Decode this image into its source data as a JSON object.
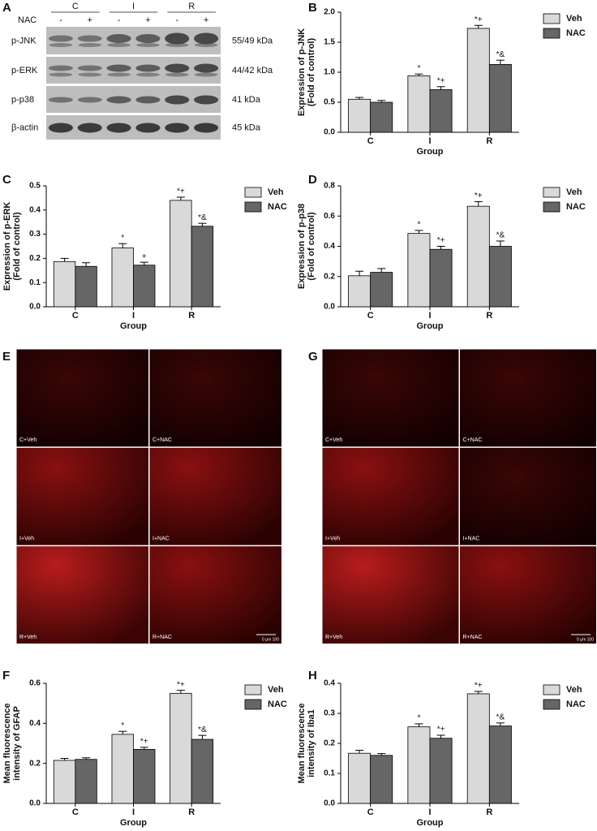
{
  "blot": {
    "panel": "A",
    "treatment_label": "NAC",
    "groups": [
      "C",
      "I",
      "R"
    ],
    "treatments": [
      "-",
      "+",
      "-",
      "+",
      "-",
      "+"
    ],
    "rows": [
      {
        "label": "p-JNK",
        "size": "55/49 kDa"
      },
      {
        "label": "p-ERK",
        "size": "44/42 kDa"
      },
      {
        "label": "p-p38",
        "size": "41 kDa"
      },
      {
        "label": "β-actin",
        "size": "45 kDa"
      }
    ]
  },
  "chart_data": [
    {
      "type": "bar",
      "panel": "B",
      "ylabel": [
        "Expression of p-JNK",
        "(Fold of control)"
      ],
      "xlabel": "Group",
      "categories": [
        "C",
        "I",
        "R"
      ],
      "ylim": [
        0,
        2
      ],
      "yticks": [
        {
          "value": 0,
          "label": "0.0"
        },
        0.5,
        {
          "value": 1,
          "label": "1.0"
        },
        1.5,
        {
          "value": 2,
          "label": "2.0"
        }
      ],
      "series": [
        {
          "name": "Veh",
          "color": "#d9d9d9",
          "values": [
            0.55,
            0.94,
            1.73
          ],
          "errors": [
            0.03,
            0.03,
            0.05
          ],
          "annotations": [
            null,
            "*",
            "*+"
          ]
        },
        {
          "name": "NAC",
          "color": "#666666",
          "values": [
            0.5,
            0.71,
            1.13
          ],
          "errors": [
            0.03,
            0.05,
            0.07
          ],
          "annotations": [
            null,
            "*+",
            "*&"
          ]
        }
      ]
    },
    {
      "type": "bar",
      "panel": "C",
      "ylabel": [
        "Expression of p-ERK",
        "(Fold of control)"
      ],
      "xlabel": "Group",
      "categories": [
        "C",
        "I",
        "R"
      ],
      "ylim": [
        0,
        0.5
      ],
      "yticks": [
        {
          "value": 0,
          "label": "0.0"
        },
        0.1,
        0.2,
        0.3,
        0.4,
        0.5
      ],
      "series": [
        {
          "name": "Veh",
          "color": "#d9d9d9",
          "values": [
            0.187,
            0.243,
            0.44
          ],
          "errors": [
            0.013,
            0.018,
            0.013
          ],
          "annotations": [
            null,
            "*",
            "*+"
          ]
        },
        {
          "name": "NAC",
          "color": "#666666",
          "values": [
            0.167,
            0.172,
            0.333
          ],
          "errors": [
            0.015,
            0.012,
            0.012
          ],
          "annotations": [
            null,
            "+",
            "*&"
          ]
        }
      ]
    },
    {
      "type": "bar",
      "panel": "D",
      "ylabel": [
        "Expression of p-p38",
        "(Fold of control)"
      ],
      "xlabel": "Group",
      "categories": [
        "C",
        "I",
        "R"
      ],
      "ylim": [
        0,
        0.8
      ],
      "yticks": [
        {
          "value": 0,
          "label": "0.0"
        },
        0.2,
        0.4,
        0.6,
        0.8
      ],
      "series": [
        {
          "name": "Veh",
          "color": "#d9d9d9",
          "values": [
            0.205,
            0.485,
            0.665
          ],
          "errors": [
            0.03,
            0.02,
            0.03
          ],
          "annotations": [
            null,
            "*",
            "*+"
          ]
        },
        {
          "name": "NAC",
          "color": "#666666",
          "values": [
            0.228,
            0.38,
            0.4
          ],
          "errors": [
            0.025,
            0.02,
            0.035
          ],
          "annotations": [
            null,
            "*+",
            "*&"
          ]
        }
      ]
    },
    {
      "type": "bar",
      "panel": "F",
      "ylabel": [
        "Mean fluorescence",
        "intensity of GFAP"
      ],
      "xlabel": "Group",
      "categories": [
        "C",
        "I",
        "R"
      ],
      "ylim": [
        0,
        0.6
      ],
      "yticks": [
        {
          "value": 0,
          "label": "0.0"
        },
        0.2,
        0.4,
        0.6
      ],
      "series": [
        {
          "name": "Veh",
          "color": "#d9d9d9",
          "values": [
            0.215,
            0.345,
            0.55
          ],
          "errors": [
            0.01,
            0.015,
            0.015
          ],
          "annotations": [
            null,
            "*",
            "*+"
          ]
        },
        {
          "name": "NAC",
          "color": "#666666",
          "values": [
            0.22,
            0.27,
            0.32
          ],
          "errors": [
            0.008,
            0.01,
            0.02
          ],
          "annotations": [
            null,
            "*+",
            "*&"
          ]
        }
      ]
    },
    {
      "type": "bar",
      "panel": "H",
      "ylabel": [
        "Mean fluorescence",
        "intensity of Iba1"
      ],
      "xlabel": "Group",
      "categories": [
        "C",
        "I",
        "R"
      ],
      "ylim": [
        0,
        0.4
      ],
      "yticks": [
        {
          "value": 0,
          "label": "0.0"
        },
        0.1,
        0.2,
        0.3,
        0.4
      ],
      "series": [
        {
          "name": "Veh",
          "color": "#d9d9d9",
          "values": [
            0.167,
            0.255,
            0.365
          ],
          "errors": [
            0.01,
            0.01,
            0.008
          ],
          "annotations": [
            null,
            "*",
            "*+"
          ]
        },
        {
          "name": "NAC",
          "color": "#666666",
          "values": [
            0.16,
            0.217,
            0.258
          ],
          "errors": [
            0.006,
            0.01,
            0.01
          ],
          "annotations": [
            null,
            "*+",
            "*&"
          ]
        }
      ]
    }
  ],
  "images": [
    {
      "panel": "E",
      "cells": [
        "C+Veh",
        "C+NAC",
        "I+Veh",
        "I+NAC",
        "R+Veh",
        "R+NAC"
      ],
      "scale_label": "0 μm 100"
    },
    {
      "panel": "G",
      "cells": [
        "C+Veh",
        "C+NAC",
        "I+Veh",
        "I+NAC",
        "R+Veh",
        "R+NAC"
      ],
      "scale_label": "0 μm 100"
    }
  ]
}
